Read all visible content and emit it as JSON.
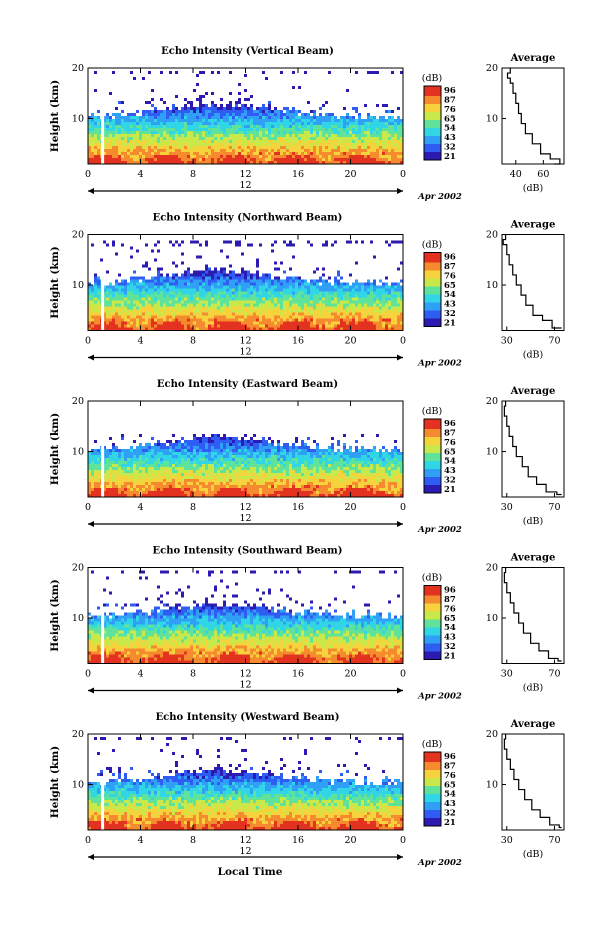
{
  "chart_data": [
    {
      "type": "heatmap",
      "title": "Echo Intensity (Vertical Beam)",
      "ylabel": "Height (km)",
      "x_ticks": [
        "0",
        "4",
        "8",
        "12",
        "16",
        "20",
        "0"
      ],
      "y_ticks": [
        "20",
        "10"
      ],
      "xlim": [
        0,
        24
      ],
      "ylim": [
        1,
        20
      ],
      "date_center": "12",
      "date_label": "Apr 2002",
      "colorbar": {
        "unit": "(dB)",
        "ticks": [
          "96",
          "87",
          "76",
          "65",
          "54",
          "43",
          "32",
          "21"
        ]
      },
      "top_profile_height_km": 19,
      "average_profile": {
        "title": "Average",
        "xlabel": "(dB)",
        "x_ticks": [
          "40",
          "60"
        ],
        "xlim": [
          30,
          75
        ],
        "y_ticks": [
          "20",
          "10"
        ],
        "points": [
          [
            36,
            20
          ],
          [
            34,
            19
          ],
          [
            36,
            18
          ],
          [
            38,
            17
          ],
          [
            40,
            15
          ],
          [
            42,
            13
          ],
          [
            44,
            11
          ],
          [
            47,
            9
          ],
          [
            52,
            7
          ],
          [
            58,
            5
          ],
          [
            65,
            3
          ],
          [
            72,
            2
          ],
          [
            68,
            1
          ]
        ]
      }
    },
    {
      "type": "heatmap",
      "title": "Echo Intensity (Northward Beam)",
      "ylabel": "Height (km)",
      "x_ticks": [
        "0",
        "4",
        "8",
        "12",
        "16",
        "20",
        "0"
      ],
      "y_ticks": [
        "20",
        "10"
      ],
      "xlim": [
        0,
        24
      ],
      "ylim": [
        1,
        20
      ],
      "date_center": "12",
      "date_label": "Apr 2002",
      "colorbar": {
        "unit": "(dB)",
        "ticks": [
          "96",
          "87",
          "76",
          "65",
          "54",
          "43",
          "32",
          "21"
        ]
      },
      "top_profile_height_km": 18,
      "average_profile": {
        "title": "Average",
        "xlabel": "(dB)",
        "x_ticks": [
          "30",
          "70"
        ],
        "xlim": [
          26,
          78
        ],
        "y_ticks": [
          "20",
          "10"
        ],
        "points": [
          [
            29,
            20
          ],
          [
            27,
            19
          ],
          [
            30,
            18
          ],
          [
            32,
            16
          ],
          [
            35,
            14
          ],
          [
            38,
            12
          ],
          [
            42,
            10
          ],
          [
            46,
            8
          ],
          [
            52,
            6
          ],
          [
            60,
            4
          ],
          [
            68,
            3
          ],
          [
            76,
            1.5
          ]
        ]
      }
    },
    {
      "type": "heatmap",
      "title": "Echo Intensity (Eastward Beam)",
      "ylabel": "Height (km)",
      "x_ticks": [
        "0",
        "4",
        "8",
        "12",
        "16",
        "20",
        "0"
      ],
      "y_ticks": [
        "20",
        "10"
      ],
      "xlim": [
        0,
        24
      ],
      "ylim": [
        1,
        20
      ],
      "date_center": "12",
      "date_label": "Apr 2002",
      "colorbar": {
        "unit": "(dB)",
        "ticks": [
          "96",
          "87",
          "76",
          "65",
          "54",
          "43",
          "32",
          "21"
        ]
      },
      "top_profile_height_km": 14,
      "average_profile": {
        "title": "Average",
        "xlabel": "(dB)",
        "x_ticks": [
          "30",
          "70"
        ],
        "xlim": [
          26,
          78
        ],
        "y_ticks": [
          "20",
          "10"
        ],
        "points": [
          [
            29,
            20
          ],
          [
            28,
            19
          ],
          [
            30,
            17
          ],
          [
            32,
            15
          ],
          [
            35,
            13
          ],
          [
            38,
            11
          ],
          [
            43,
            9
          ],
          [
            48,
            7
          ],
          [
            55,
            5
          ],
          [
            63,
            3.5
          ],
          [
            72,
            2
          ],
          [
            76,
            1.5
          ]
        ]
      }
    },
    {
      "type": "heatmap",
      "title": "Echo Intensity (Southward Beam)",
      "ylabel": "Height (km)",
      "x_ticks": [
        "0",
        "4",
        "8",
        "12",
        "16",
        "20",
        "0"
      ],
      "y_ticks": [
        "20",
        "10"
      ],
      "xlim": [
        0,
        24
      ],
      "ylim": [
        1,
        20
      ],
      "date_center": "12",
      "date_label": "Apr 2002",
      "colorbar": {
        "unit": "(dB)",
        "ticks": [
          "96",
          "87",
          "76",
          "65",
          "54",
          "43",
          "32",
          "21"
        ]
      },
      "top_profile_height_km": 19,
      "average_profile": {
        "title": "Average",
        "xlabel": "(dB)",
        "x_ticks": [
          "30",
          "70"
        ],
        "xlim": [
          26,
          78
        ],
        "y_ticks": [
          "20",
          "10"
        ],
        "points": [
          [
            29,
            20
          ],
          [
            28,
            19
          ],
          [
            30,
            17
          ],
          [
            33,
            15
          ],
          [
            36,
            13
          ],
          [
            40,
            11
          ],
          [
            44,
            9
          ],
          [
            50,
            7
          ],
          [
            57,
            5
          ],
          [
            65,
            3.5
          ],
          [
            73,
            2
          ],
          [
            76,
            1.5
          ]
        ]
      }
    },
    {
      "type": "heatmap",
      "title": "Echo Intensity (Westward Beam)",
      "ylabel": "Height (km)",
      "x_ticks": [
        "0",
        "4",
        "8",
        "12",
        "16",
        "20",
        "0"
      ],
      "y_ticks": [
        "20",
        "10"
      ],
      "xlim": [
        0,
        24
      ],
      "ylim": [
        1,
        20
      ],
      "date_center": "12",
      "date_label": "Apr 2002",
      "colorbar": {
        "unit": "(dB)",
        "ticks": [
          "96",
          "87",
          "76",
          "65",
          "54",
          "43",
          "32",
          "21"
        ]
      },
      "top_profile_height_km": 19,
      "average_profile": {
        "title": "Average",
        "xlabel": "(dB)",
        "x_ticks": [
          "30",
          "70"
        ],
        "xlim": [
          26,
          78
        ],
        "y_ticks": [
          "20",
          "10"
        ],
        "points": [
          [
            29,
            20
          ],
          [
            28,
            19
          ],
          [
            30,
            17
          ],
          [
            33,
            15
          ],
          [
            36,
            13
          ],
          [
            40,
            11
          ],
          [
            45,
            9
          ],
          [
            51,
            7
          ],
          [
            58,
            5
          ],
          [
            66,
            3.5
          ],
          [
            74,
            2
          ],
          [
            76,
            1.5
          ]
        ]
      }
    }
  ],
  "xlabel": "Local Time",
  "colors": {
    "scale": [
      "#2b1bb0",
      "#2f5cf2",
      "#2fa0f5",
      "#31d6e6",
      "#5fe39a",
      "#c9e94a",
      "#f6d23c",
      "#f68a2e",
      "#e3321f"
    ]
  }
}
